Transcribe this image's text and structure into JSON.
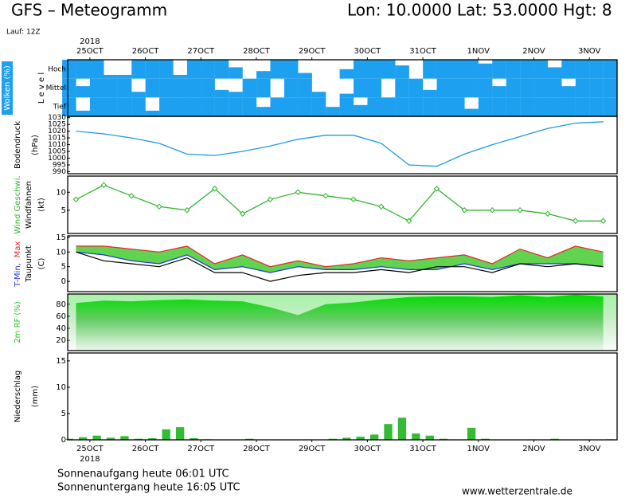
{
  "header": {
    "title": "GFS – Meteogramm",
    "location": "Lon: 10.0000  Lat: 53.0000  Hgt: 8",
    "run": "Lauf: 12Z"
  },
  "chart_data": [
    {
      "type": "cloud",
      "title": "Wolken (%)",
      "level_label": "L e v e l",
      "year": "2018",
      "x": [
        -0.375,
        -0.125,
        0.125,
        0.375,
        0.625,
        0.875,
        1.125,
        1.375,
        1.625,
        1.875,
        2.125,
        2.375,
        2.625,
        2.875,
        3.125,
        3.375,
        3.625,
        3.875,
        4.125,
        4.375,
        4.625,
        4.875,
        5.125,
        5.375,
        5.625,
        5.875,
        6.125,
        6.375,
        6.625,
        6.875,
        7.125,
        7.375,
        7.625,
        7.875,
        8.125,
        8.375,
        8.625,
        8.875,
        9.125,
        9.375
      ],
      "xlim": [
        -0.4,
        9.5
      ],
      "xticks": [
        {
          "value": 0,
          "label": "25OCT"
        },
        {
          "value": 1,
          "label": "26OCT"
        },
        {
          "value": 2,
          "label": "27OCT"
        },
        {
          "value": 3,
          "label": "28OCT"
        },
        {
          "value": 4,
          "label": "29OCT"
        },
        {
          "value": 5,
          "label": "30OCT"
        },
        {
          "value": 6,
          "label": "31OCT"
        },
        {
          "value": 7,
          "label": "1NOV"
        },
        {
          "value": 8,
          "label": "2NOV"
        },
        {
          "value": 9,
          "label": "3NOV"
        }
      ],
      "series": [
        {
          "name": "Hoch",
          "color": "#1ea0f0",
          "values": [
            100,
            100,
            100,
            20,
            20,
            100,
            100,
            100,
            20,
            100,
            100,
            100,
            60,
            0,
            40,
            100,
            100,
            30,
            0,
            0,
            50,
            100,
            100,
            100,
            70,
            0,
            100,
            100,
            100,
            100,
            80,
            100,
            100,
            100,
            100,
            60,
            100,
            100,
            100,
            100
          ]
        },
        {
          "name": "Mittel",
          "color": "#1ea0f0",
          "values": [
            100,
            60,
            100,
            100,
            100,
            30,
            100,
            100,
            100,
            100,
            100,
            40,
            30,
            100,
            100,
            0,
            100,
            100,
            30,
            0,
            20,
            100,
            100,
            0,
            100,
            100,
            40,
            100,
            100,
            100,
            100,
            60,
            100,
            100,
            100,
            100,
            60,
            100,
            100,
            100
          ]
        },
        {
          "name": "Tief",
          "color": "#1ea0f0",
          "values": [
            100,
            30,
            100,
            100,
            100,
            100,
            30,
            100,
            100,
            100,
            100,
            100,
            100,
            100,
            50,
            100,
            100,
            100,
            100,
            50,
            100,
            60,
            100,
            100,
            100,
            100,
            100,
            100,
            100,
            40,
            100,
            100,
            100,
            100,
            100,
            100,
            100,
            100,
            100,
            100
          ]
        }
      ]
    },
    {
      "type": "line",
      "title": "Bodendruck",
      "unit": "(hPa)",
      "color": "#1e9be0",
      "x": [
        -0.25,
        0.25,
        0.75,
        1.25,
        1.75,
        2.25,
        2.75,
        3.25,
        3.75,
        4.25,
        4.75,
        5.25,
        5.75,
        6.25,
        6.75,
        7.25,
        7.75,
        8.25,
        8.75,
        9.25
      ],
      "values": [
        1020,
        1018,
        1015,
        1011,
        1003,
        1002,
        1005,
        1009,
        1014,
        1017,
        1017,
        1011,
        995,
        994,
        1003,
        1010,
        1016,
        1022,
        1026,
        1027
      ],
      "xlim": [
        -0.4,
        9.5
      ],
      "ylim": [
        988.5,
        1031
      ],
      "yticks": [
        990,
        995,
        1000,
        1005,
        1010,
        1015,
        1020,
        1025,
        1030
      ]
    },
    {
      "type": "line",
      "title": "Wind Geschwi.",
      "subtitle": "Windfahnen",
      "unit": "(kt)",
      "color": "#2db82d",
      "marker": "diamond",
      "x": [
        -0.25,
        0.25,
        0.75,
        1.25,
        1.75,
        2.25,
        2.75,
        3.25,
        3.75,
        4.25,
        4.75,
        5.25,
        5.75,
        6.25,
        6.75,
        7.25,
        7.75,
        8.25,
        8.75,
        9.25
      ],
      "values": [
        8,
        12,
        9,
        6,
        5,
        11,
        4,
        8,
        10,
        9,
        8,
        6,
        2,
        11,
        5,
        5,
        5,
        4,
        2,
        2
      ],
      "xlim": [
        -0.4,
        9.5
      ],
      "ylim": [
        -1.5,
        14.5
      ],
      "yticks": [
        5,
        10
      ]
    },
    {
      "type": "line",
      "unit": "(C)",
      "band_color": "#44cc33",
      "x": [
        -0.25,
        0.25,
        0.75,
        1.25,
        1.75,
        2.25,
        2.75,
        3.25,
        3.75,
        4.25,
        4.75,
        5.25,
        5.75,
        6.25,
        6.75,
        7.25,
        7.75,
        8.25,
        8.75,
        9.25
      ],
      "series": [
        {
          "name": "T-Min,",
          "color": "#2233dd",
          "values": [
            10,
            9,
            7,
            6,
            9,
            4,
            5,
            3,
            5,
            4,
            4,
            5,
            4,
            4,
            6,
            4,
            6,
            6,
            6,
            5
          ]
        },
        {
          "name": "Max",
          "color": "#ee2222",
          "values": [
            12,
            12,
            11,
            10,
            12,
            6,
            9,
            5,
            7,
            5,
            6,
            8,
            7,
            8,
            9,
            6,
            11,
            8,
            12,
            10
          ]
        },
        {
          "name": "Taupunkt",
          "color": "#000000",
          "values": [
            10,
            7,
            6,
            5,
            8,
            3,
            3,
            0,
            2,
            3,
            3,
            4,
            3,
            5,
            5,
            3,
            6,
            5,
            6,
            5
          ]
        }
      ],
      "xlim": [
        -0.4,
        9.5
      ],
      "ylim": [
        -3.5,
        15.5
      ],
      "yticks": [
        0,
        5,
        10,
        15
      ]
    },
    {
      "type": "area",
      "title": "2m RF (%)",
      "color": "#22cc22",
      "x": [
        -0.25,
        0.25,
        0.75,
        1.25,
        1.75,
        2.25,
        2.75,
        3.25,
        3.75,
        4.25,
        4.75,
        5.25,
        5.75,
        6.25,
        6.75,
        7.25,
        7.75,
        8.25,
        8.75,
        9.25
      ],
      "values": [
        82,
        86,
        85,
        87,
        88,
        86,
        85,
        75,
        62,
        80,
        83,
        88,
        92,
        93,
        93,
        92,
        95,
        92,
        96,
        93
      ],
      "xlim": [
        -0.4,
        9.5
      ],
      "ylim": [
        3,
        97
      ],
      "yticks": [
        20,
        40,
        60,
        80
      ]
    },
    {
      "type": "bar",
      "title": "Niederschlag",
      "unit": "(mm)",
      "color": "#33bb33",
      "year": "2018",
      "x": [
        -0.375,
        -0.125,
        0.125,
        0.375,
        0.625,
        0.875,
        1.125,
        1.375,
        1.625,
        1.875,
        2.125,
        2.375,
        2.625,
        2.875,
        3.125,
        3.375,
        3.625,
        3.875,
        4.125,
        4.375,
        4.625,
        4.875,
        5.125,
        5.375,
        5.625,
        5.875,
        6.125,
        6.375,
        6.625,
        6.875,
        7.125,
        7.375,
        7.625,
        7.875,
        8.125,
        8.375,
        8.625,
        8.875,
        9.125,
        9.375
      ],
      "values": [
        0.2,
        0.5,
        0.8,
        0.4,
        0.7,
        0.2,
        0.3,
        2.0,
        2.4,
        0.3,
        0.1,
        0,
        0,
        0.2,
        0,
        0,
        0,
        0,
        0,
        0.2,
        0.4,
        0.6,
        1.0,
        3.0,
        4.2,
        1.2,
        0.8,
        0.2,
        0,
        2.3,
        0.2,
        0,
        0,
        0,
        0,
        0.2,
        0,
        0,
        0,
        0.1
      ],
      "xlim": [
        -0.4,
        9.5
      ],
      "ylim": [
        0,
        16.5
      ],
      "yticks": [
        0,
        5,
        10,
        15
      ],
      "xticks": [
        {
          "value": 0,
          "label": "25OCT"
        },
        {
          "value": 1,
          "label": "26OCT"
        },
        {
          "value": 2,
          "label": "27OCT"
        },
        {
          "value": 3,
          "label": "28OCT"
        },
        {
          "value": 4,
          "label": "29OCT"
        },
        {
          "value": 5,
          "label": "30OCT"
        },
        {
          "value": 6,
          "label": "31OCT"
        },
        {
          "value": 7,
          "label": "1NOV"
        },
        {
          "value": 8,
          "label": "2NOV"
        },
        {
          "value": 9,
          "label": "3NOV"
        }
      ]
    }
  ],
  "footer": {
    "sunrise": "Sonnenaufgang heute 06:01 UTC",
    "sunset": "Sonnenuntergang heute 16:05 UTC",
    "source": "www.wetterzentrale.de"
  }
}
